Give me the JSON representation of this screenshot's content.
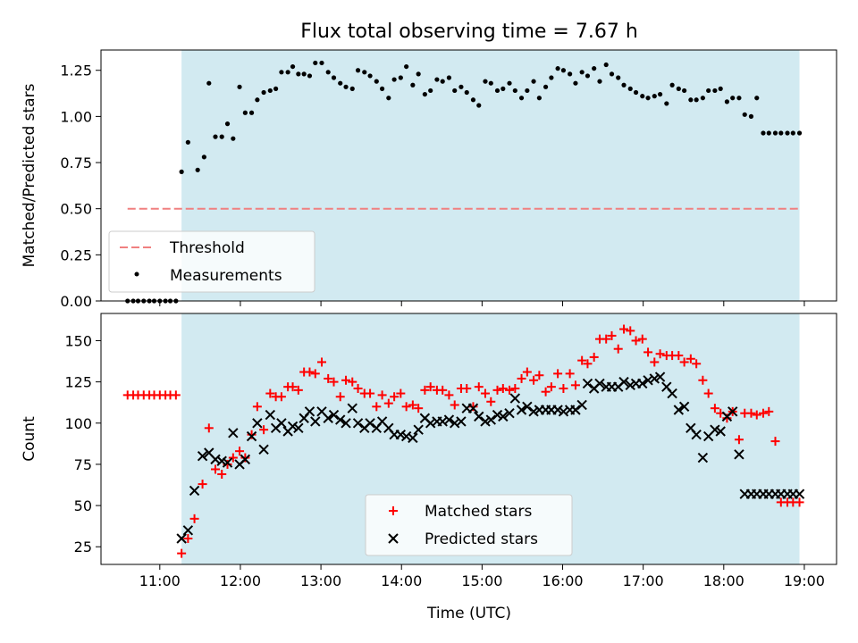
{
  "chart_data": [
    {
      "type": "scatter",
      "title": "Flux total observing time = 7.67 h",
      "xlabel": "",
      "ylabel": "Matched/Predicted stars",
      "xlim": [
        10.27,
        19.4
      ],
      "ylim": [
        0,
        1.36
      ],
      "xticks": [
        11,
        12,
        13,
        14,
        15,
        16,
        17,
        18,
        19
      ],
      "yticks": [
        {
          "v": 0.0,
          "label": "0.00"
        },
        {
          "v": 0.25,
          "label": "0.25"
        },
        {
          "v": 0.5,
          "label": "0.50"
        },
        {
          "v": 0.75,
          "label": "0.75"
        },
        {
          "v": 1.0,
          "label": "1.00"
        },
        {
          "v": 1.25,
          "label": "1.25"
        }
      ],
      "shaded_region": {
        "x0": 11.27,
        "x1": 18.94,
        "color": "#add8e6"
      },
      "threshold": {
        "name": "Threshold",
        "x0": 10.6,
        "x1": 18.94,
        "y": 0.5,
        "color": "#f08080"
      },
      "legend": {
        "position": "lower-left",
        "entries": [
          "Threshold",
          "Measurements"
        ]
      },
      "series": [
        {
          "name": "Measurements",
          "color": "#000000",
          "x": [
            10.6,
            10.67,
            10.73,
            10.8,
            10.87,
            10.93,
            11.0,
            11.07,
            11.13,
            11.2,
            11.27,
            11.35,
            11.47,
            11.55,
            11.61,
            11.69,
            11.77,
            11.84,
            11.91,
            11.99,
            12.06,
            12.14,
            12.21,
            12.29,
            12.37,
            12.44,
            12.51,
            12.59,
            12.65,
            12.72,
            12.79,
            12.86,
            12.93,
            13.01,
            13.09,
            13.16,
            13.24,
            13.31,
            13.39,
            13.46,
            13.54,
            13.61,
            13.69,
            13.76,
            13.84,
            13.91,
            13.99,
            14.06,
            14.14,
            14.21,
            14.29,
            14.36,
            14.44,
            14.51,
            14.59,
            14.66,
            14.74,
            14.81,
            14.89,
            14.96,
            15.04,
            15.11,
            15.19,
            15.26,
            15.34,
            15.41,
            15.49,
            15.56,
            15.64,
            15.71,
            15.79,
            15.86,
            15.94,
            16.01,
            16.09,
            16.16,
            16.24,
            16.31,
            16.39,
            16.46,
            16.54,
            16.61,
            16.69,
            16.76,
            16.84,
            16.91,
            16.99,
            17.06,
            17.14,
            17.21,
            17.29,
            17.36,
            17.44,
            17.51,
            17.59,
            17.66,
            17.74,
            17.81,
            17.89,
            17.96,
            18.04,
            18.11,
            18.19,
            18.26,
            18.34,
            18.41,
            18.49,
            18.56,
            18.64,
            18.71,
            18.79,
            18.86,
            18.94
          ],
          "y": [
            0.0,
            0.0,
            0.0,
            0.0,
            0.0,
            0.0,
            0.0,
            0.0,
            0.0,
            0.0,
            0.7,
            0.86,
            0.71,
            0.78,
            1.18,
            0.89,
            0.89,
            0.96,
            0.88,
            1.16,
            1.02,
            1.02,
            1.09,
            1.13,
            1.14,
            1.15,
            1.24,
            1.24,
            1.27,
            1.23,
            1.23,
            1.22,
            1.29,
            1.29,
            1.24,
            1.21,
            1.18,
            1.16,
            1.15,
            1.25,
            1.24,
            1.22,
            1.19,
            1.15,
            1.1,
            1.2,
            1.21,
            1.27,
            1.17,
            1.23,
            1.12,
            1.14,
            1.2,
            1.19,
            1.21,
            1.14,
            1.16,
            1.13,
            1.09,
            1.06,
            1.19,
            1.18,
            1.14,
            1.15,
            1.18,
            1.14,
            1.1,
            1.14,
            1.19,
            1.1,
            1.16,
            1.21,
            1.26,
            1.25,
            1.23,
            1.18,
            1.24,
            1.22,
            1.26,
            1.19,
            1.28,
            1.23,
            1.21,
            1.17,
            1.15,
            1.13,
            1.11,
            1.1,
            1.11,
            1.12,
            1.07,
            1.17,
            1.15,
            1.14,
            1.09,
            1.09,
            1.1,
            1.14,
            1.14,
            1.15,
            1.08,
            1.1,
            1.1,
            1.01,
            1.0,
            1.1,
            0.91,
            0.91,
            0.91,
            0.91,
            0.91,
            0.91,
            0.91
          ]
        }
      ]
    },
    {
      "type": "scatter",
      "title": "",
      "xlabel": "Time (UTC)",
      "ylabel": "Count",
      "xlim": [
        10.27,
        19.4
      ],
      "ylim": [
        14.3,
        166.5
      ],
      "xticks": [
        {
          "v": 11,
          "label": "11:00"
        },
        {
          "v": 12,
          "label": "12:00"
        },
        {
          "v": 13,
          "label": "13:00"
        },
        {
          "v": 14,
          "label": "14:00"
        },
        {
          "v": 15,
          "label": "15:00"
        },
        {
          "v": 16,
          "label": "16:00"
        },
        {
          "v": 17,
          "label": "17:00"
        },
        {
          "v": 18,
          "label": "18:00"
        },
        {
          "v": 19,
          "label": "19:00"
        }
      ],
      "yticks": [
        25,
        50,
        75,
        100,
        125,
        150
      ],
      "shaded_region": {
        "x0": 11.27,
        "x1": 18.94,
        "color": "#add8e6"
      },
      "legend": {
        "position": "lower-center",
        "entries": [
          "Matched stars",
          "Predicted stars"
        ]
      },
      "series": [
        {
          "name": "Matched stars",
          "marker": "plus",
          "color": "#ff0000",
          "x": [
            10.6,
            10.67,
            10.73,
            10.8,
            10.87,
            10.93,
            11.0,
            11.07,
            11.13,
            11.2,
            11.27,
            11.35,
            11.43,
            11.53,
            11.61,
            11.69,
            11.77,
            11.84,
            11.91,
            11.99,
            12.06,
            12.14,
            12.21,
            12.29,
            12.37,
            12.44,
            12.51,
            12.59,
            12.65,
            12.72,
            12.79,
            12.86,
            12.93,
            13.01,
            13.09,
            13.16,
            13.24,
            13.31,
            13.39,
            13.46,
            13.54,
            13.61,
            13.69,
            13.76,
            13.84,
            13.91,
            13.99,
            14.06,
            14.14,
            14.21,
            14.29,
            14.36,
            14.44,
            14.51,
            14.59,
            14.66,
            14.74,
            14.81,
            14.89,
            14.96,
            15.04,
            15.11,
            15.19,
            15.26,
            15.34,
            15.41,
            15.49,
            15.56,
            15.64,
            15.71,
            15.79,
            15.86,
            15.94,
            16.01,
            16.09,
            16.16,
            16.24,
            16.31,
            16.39,
            16.46,
            16.54,
            16.61,
            16.69,
            16.76,
            16.84,
            16.91,
            16.99,
            17.06,
            17.14,
            17.21,
            17.29,
            17.36,
            17.44,
            17.51,
            17.59,
            17.66,
            17.74,
            17.81,
            17.89,
            17.96,
            18.04,
            18.11,
            18.19,
            18.26,
            18.34,
            18.41,
            18.49,
            18.56,
            18.64,
            18.71,
            18.79,
            18.86,
            18.94
          ],
          "y": [
            117,
            117,
            117,
            117,
            117,
            117,
            117,
            117,
            117,
            117,
            21,
            30,
            42,
            63,
            97,
            72,
            69,
            75,
            79,
            83,
            79,
            93,
            110,
            96,
            118,
            116,
            116,
            122,
            122,
            120,
            131,
            131,
            130,
            137,
            127,
            125,
            116,
            126,
            125,
            121,
            118,
            118,
            110,
            117,
            112,
            116,
            118,
            110,
            111,
            109,
            120,
            122,
            120,
            120,
            117,
            111,
            121,
            121,
            110,
            122,
            118,
            113,
            120,
            121,
            120,
            121,
            127,
            131,
            126,
            129,
            119,
            122,
            130,
            121,
            130,
            123,
            138,
            136,
            140,
            151,
            151,
            153,
            145,
            157,
            156,
            150,
            151,
            143,
            137,
            142,
            141,
            141,
            141,
            137,
            139,
            136,
            126,
            118,
            109,
            106,
            103,
            107,
            90,
            106,
            106,
            105,
            106,
            107,
            89,
            52,
            52,
            52,
            52
          ]
        },
        {
          "name": "Predicted stars",
          "marker": "x",
          "color": "#000000",
          "x": [
            11.27,
            11.35,
            11.43,
            11.53,
            11.61,
            11.69,
            11.77,
            11.84,
            11.91,
            11.99,
            12.06,
            12.14,
            12.21,
            12.29,
            12.37,
            12.44,
            12.51,
            12.59,
            12.65,
            12.72,
            12.79,
            12.86,
            12.93,
            13.01,
            13.09,
            13.16,
            13.24,
            13.31,
            13.39,
            13.46,
            13.54,
            13.61,
            13.69,
            13.76,
            13.84,
            13.91,
            13.99,
            14.06,
            14.14,
            14.21,
            14.29,
            14.36,
            14.44,
            14.51,
            14.59,
            14.66,
            14.74,
            14.81,
            14.89,
            14.96,
            15.04,
            15.11,
            15.19,
            15.26,
            15.34,
            15.41,
            15.49,
            15.56,
            15.64,
            15.71,
            15.79,
            15.86,
            15.94,
            16.01,
            16.09,
            16.16,
            16.24,
            16.31,
            16.39,
            16.46,
            16.54,
            16.61,
            16.69,
            16.76,
            16.84,
            16.91,
            16.99,
            17.06,
            17.14,
            17.21,
            17.29,
            17.36,
            17.44,
            17.51,
            17.59,
            17.66,
            17.74,
            17.81,
            17.89,
            17.96,
            18.04,
            18.11,
            18.19,
            18.26,
            18.34,
            18.41,
            18.49,
            18.56,
            18.64,
            18.71,
            18.79,
            18.86,
            18.94
          ],
          "y": [
            30,
            35,
            59,
            80,
            82,
            78,
            77,
            76,
            94,
            75,
            78,
            92,
            100,
            84,
            105,
            97,
            100,
            95,
            98,
            97,
            103,
            107,
            101,
            107,
            103,
            105,
            102,
            100,
            109,
            100,
            97,
            100,
            97,
            101,
            97,
            93,
            93,
            92,
            91,
            96,
            103,
            100,
            101,
            101,
            102,
            100,
            101,
            109,
            109,
            104,
            101,
            102,
            105,
            104,
            106,
            115,
            108,
            110,
            107,
            108,
            108,
            108,
            108,
            107,
            108,
            108,
            111,
            124,
            121,
            124,
            122,
            122,
            122,
            125,
            123,
            124,
            124,
            126,
            127,
            128,
            122,
            118,
            108,
            110,
            97,
            93,
            79,
            92,
            96,
            95,
            104,
            107,
            81,
            57,
            57,
            57,
            57,
            57,
            57,
            57,
            57,
            57,
            57
          ]
        }
      ]
    }
  ]
}
